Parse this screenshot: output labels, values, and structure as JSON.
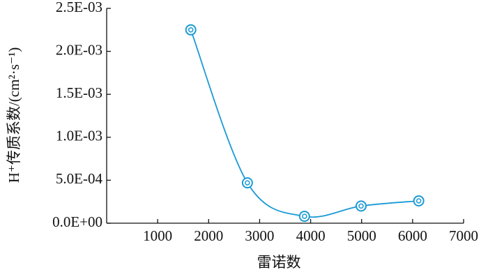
{
  "chart_data": {
    "type": "line",
    "xlabel": "雷诺数",
    "ylabel": "H⁺传质系数/(cm²·s⁻¹)",
    "x": [
      1650,
      2760,
      3880,
      4990,
      6120
    ],
    "series": [
      {
        "name": "H⁺传质系数",
        "color": "#1a9ad6",
        "values": [
          0.00225,
          0.00047,
          8e-05,
          0.0002,
          0.00026
        ]
      }
    ],
    "xlim": [
      0,
      7000
    ],
    "xticks": [
      1000,
      2000,
      3000,
      4000,
      5000,
      6000,
      7000
    ],
    "ylim": [
      0,
      0.0025
    ],
    "yticks": [
      {
        "value": 0,
        "label": "0.0E+00"
      },
      {
        "value": 0.0005,
        "label": "5.0E-04"
      },
      {
        "value": 0.001,
        "label": "1.0E-03"
      },
      {
        "value": 0.0015,
        "label": "1.5E-03"
      },
      {
        "value": 0.002,
        "label": "2.0E-03"
      },
      {
        "value": 0.0025,
        "label": "2.5E-03"
      }
    ],
    "smooth": true
  }
}
